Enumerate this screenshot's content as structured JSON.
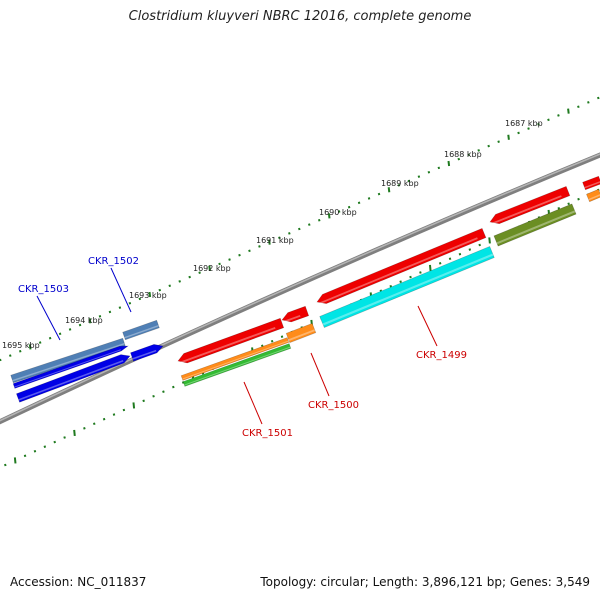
{
  "title": "Clostridium kluyveri NBRC 12016, complete genome",
  "footer": {
    "accession": "Accession: NC_011837",
    "summary": "Topology: circular; Length: 3,896,121 bp; Genes: 3,549"
  },
  "colors": {
    "backbone": "#7f7f7f",
    "tick": "#1f7a1f",
    "label_forward": "#0000cc",
    "label_reverse": "#cc0000"
  },
  "scale_labels": [
    "1687 kbp",
    "1688 kbp",
    "1689 kbp",
    "1690 kbp",
    "1691 kbp",
    "1692 kbp",
    "1693 kbp",
    "1694 kbp",
    "1695 kbp"
  ],
  "gene_labels": [
    {
      "name": "CKR_1503",
      "strand": "forward"
    },
    {
      "name": "CKR_1502",
      "strand": "forward"
    },
    {
      "name": "CKR_1501",
      "strand": "reverse"
    },
    {
      "name": "CKR_1500",
      "strand": "reverse"
    },
    {
      "name": "CKR_1499",
      "strand": "reverse"
    }
  ],
  "features": [
    {
      "id": "f-steelblue-a",
      "color": "#4f7fb5"
    },
    {
      "id": "f-steelblue-b",
      "color": "#4f7fb5"
    },
    {
      "id": "f-blue-a",
      "color": "#0000e6"
    },
    {
      "id": "f-blue-b",
      "color": "#0000e6"
    },
    {
      "id": "f-blue-c",
      "color": "#0000e6"
    },
    {
      "id": "f-red-1501",
      "color": "#ee0000"
    },
    {
      "id": "f-red-1500",
      "color": "#ee0000"
    },
    {
      "id": "f-red-1499",
      "color": "#ee0000"
    },
    {
      "id": "f-red-upper-a",
      "color": "#ee0000"
    },
    {
      "id": "f-red-upper-b",
      "color": "#ee0000"
    },
    {
      "id": "f-orange-1501",
      "color": "#ff8c1a"
    },
    {
      "id": "f-orange-1500",
      "color": "#ff8c1a"
    },
    {
      "id": "f-orange-edge",
      "color": "#ff8c1a"
    },
    {
      "id": "f-green-1501",
      "color": "#33bb33"
    },
    {
      "id": "f-cyan-1499",
      "color": "#00e5e5"
    },
    {
      "id": "f-olive",
      "color": "#6b8e23"
    }
  ]
}
